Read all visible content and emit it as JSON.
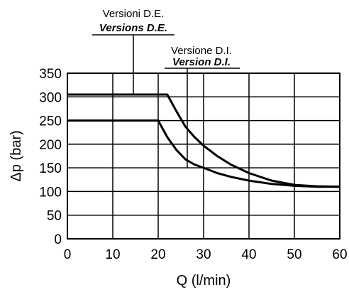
{
  "chart_data": {
    "type": "line",
    "xlabel": "Q (l/min)",
    "ylabel": "Δp (bar)",
    "xlim": [
      0,
      60
    ],
    "ylim": [
      0,
      350
    ],
    "xticks": [
      "0",
      "10",
      "20",
      "30",
      "40",
      "50",
      "60"
    ],
    "yticks": [
      "0",
      "50",
      "100",
      "150",
      "200",
      "250",
      "300",
      "350"
    ],
    "grid": true,
    "series": [
      {
        "x": [
          0,
          22,
          24,
          26,
          28,
          30,
          33,
          36,
          40,
          45,
          50,
          55,
          60
        ],
        "y": [
          305,
          305,
          270,
          237,
          215,
          197,
          175,
          157,
          139,
          123,
          114,
          111,
          110
        ]
      },
      {
        "x": [
          0,
          20,
          22,
          24,
          26,
          28,
          30,
          33,
          36,
          40,
          45,
          50,
          55,
          60
        ],
        "y": [
          250,
          250,
          215,
          188,
          168,
          157,
          150,
          139,
          131,
          123,
          116,
          112,
          110,
          110
        ]
      }
    ],
    "annotations": [
      {
        "text": "Versioni D.E.",
        "translation": "Versions D.E."
      },
      {
        "text": "Versione D.I.",
        "translation": "Version D.I."
      }
    ]
  }
}
